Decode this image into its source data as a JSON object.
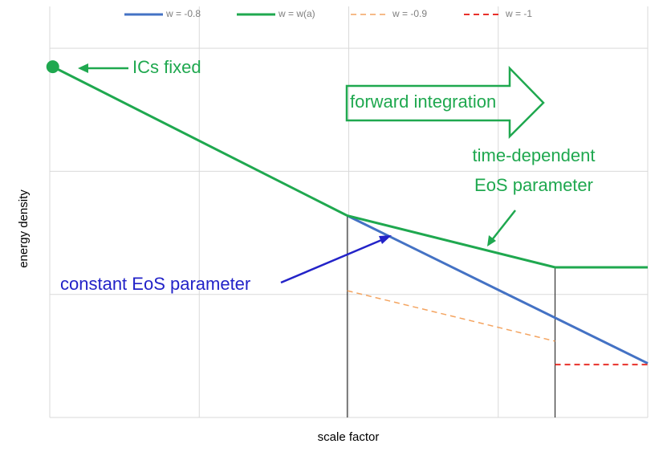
{
  "chart_data": {
    "type": "line",
    "xlabel": "scale factor",
    "ylabel": "energy density",
    "xlim": [
      0,
      4
    ],
    "ylim": [
      0,
      3.34
    ],
    "xgrid": [
      0,
      1,
      2,
      3,
      4
    ],
    "ygrid": [
      0,
      1,
      2,
      3
    ],
    "legend": "top",
    "series": [
      {
        "name": "w = -0.8",
        "color": "#4472c4",
        "width": 3,
        "dashed": false,
        "x": [
          1.99,
          4
        ],
        "values": [
          1.64,
          0.44
        ]
      },
      {
        "name": "w = w(a)",
        "color": "#1fa84f",
        "width": 3,
        "dashed": false,
        "marker_first": true,
        "x": [
          0.02,
          1.99,
          3.38,
          4
        ],
        "values": [
          2.85,
          1.64,
          1.22,
          1.22
        ]
      },
      {
        "name": "w = -0.9",
        "color": "#f4a460",
        "width": 1.5,
        "dashed": true,
        "x": [
          1.99,
          3.38
        ],
        "values": [
          1.03,
          0.62
        ]
      },
      {
        "name": "w = -1",
        "color": "#e8302a",
        "width": 2,
        "dashed": true,
        "x": [
          3.38,
          4
        ],
        "values": [
          0.43,
          0.43
        ]
      }
    ],
    "vlines": [
      {
        "x": 1.99,
        "top": 1.64
      },
      {
        "x": 3.38,
        "top": 1.22
      }
    ],
    "annotations": {
      "ics": "ICs fixed",
      "forward": "forward integration",
      "time_dep_1": "time-dependent",
      "time_dep_2": "EoS parameter",
      "constant": "constant EoS parameter"
    }
  }
}
